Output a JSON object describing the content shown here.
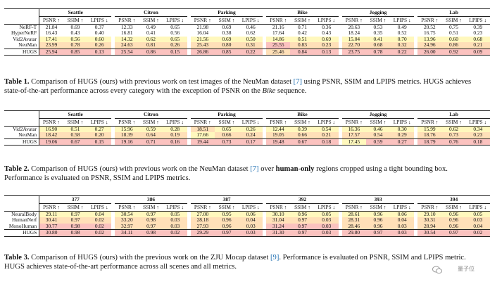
{
  "table1": {
    "groups": [
      "Seattle",
      "Citron",
      "Parking",
      "Bike",
      "Jogging",
      "Lab"
    ],
    "metrics": [
      "PSNR ↑",
      "SSIM ↑",
      "LPIPS ↓"
    ],
    "rows": [
      {
        "name": "NeRF-T",
        "cells": [
          [
            "21.84",
            ""
          ],
          [
            "0.69",
            ""
          ],
          [
            "0.37",
            ""
          ],
          [
            "12.33",
            ""
          ],
          [
            "0.49",
            ""
          ],
          [
            "0.65",
            ""
          ],
          [
            "21.98",
            ""
          ],
          [
            "0.69",
            ""
          ],
          [
            "0.46",
            ""
          ],
          [
            "21.16",
            ""
          ],
          [
            "0.71",
            ""
          ],
          [
            "0.36",
            ""
          ],
          [
            "20.63",
            ""
          ],
          [
            "0.53",
            ""
          ],
          [
            "0.49",
            ""
          ],
          [
            "20.52",
            ""
          ],
          [
            "0.75",
            ""
          ],
          [
            "0.39",
            ""
          ]
        ]
      },
      {
        "name": "HyperNeRF",
        "cells": [
          [
            "16.43",
            ""
          ],
          [
            "0.43",
            ""
          ],
          [
            "0.40",
            ""
          ],
          [
            "16.81",
            ""
          ],
          [
            "0.41",
            ""
          ],
          [
            "0.56",
            ""
          ],
          [
            "16.04",
            ""
          ],
          [
            "0.38",
            ""
          ],
          [
            "0.62",
            ""
          ],
          [
            "17.64",
            ""
          ],
          [
            "0.42",
            ""
          ],
          [
            "0.43",
            ""
          ],
          [
            "18.24",
            ""
          ],
          [
            "0.35",
            ""
          ],
          [
            "0.52",
            ""
          ],
          [
            "16.75",
            ""
          ],
          [
            "0.51",
            ""
          ],
          [
            "0.23",
            ""
          ]
        ]
      },
      {
        "name": "Vid2Avatar",
        "cells": [
          [
            "17.41",
            "y"
          ],
          [
            "0.56",
            "y"
          ],
          [
            "0.60",
            "y"
          ],
          [
            "14.32",
            "y"
          ],
          [
            "0.62",
            "y"
          ],
          [
            "0.65",
            "y"
          ],
          [
            "21.56",
            "y"
          ],
          [
            "0.69",
            "y"
          ],
          [
            "0.50",
            "y"
          ],
          [
            "14.86",
            "y"
          ],
          [
            "0.51",
            "y"
          ],
          [
            "0.69",
            "y"
          ],
          [
            "15.04",
            "y"
          ],
          [
            "0.41",
            "y"
          ],
          [
            "0.70",
            "y"
          ],
          [
            "13.96",
            "y"
          ],
          [
            "0.60",
            "y"
          ],
          [
            "0.68",
            "y"
          ]
        ]
      },
      {
        "name": "NeuMan",
        "cells": [
          [
            "23.99",
            "o"
          ],
          [
            "0.78",
            "o"
          ],
          [
            "0.26",
            "o"
          ],
          [
            "24.63",
            "o"
          ],
          [
            "0.81",
            "o"
          ],
          [
            "0.26",
            "o"
          ],
          [
            "25.43",
            "o"
          ],
          [
            "0.80",
            "o"
          ],
          [
            "0.31",
            "o"
          ],
          [
            "25.55",
            "b"
          ],
          [
            "0.83",
            "o"
          ],
          [
            "0.23",
            "o"
          ],
          [
            "22.70",
            "o"
          ],
          [
            "0.68",
            "o"
          ],
          [
            "0.32",
            "o"
          ],
          [
            "24.96",
            "o"
          ],
          [
            "0.86",
            "o"
          ],
          [
            "0.21",
            "o"
          ]
        ]
      }
    ],
    "hugs": {
      "name": "HUGS",
      "cells": [
        [
          "25.94",
          "b"
        ],
        [
          "0.85",
          "b"
        ],
        [
          "0.13",
          "b"
        ],
        [
          "25.54",
          "b"
        ],
        [
          "0.86",
          "b"
        ],
        [
          "0.15",
          "b"
        ],
        [
          "26.86",
          "b"
        ],
        [
          "0.85",
          "b"
        ],
        [
          "0.22",
          "b"
        ],
        [
          "25.46",
          "o"
        ],
        [
          "0.84",
          "b"
        ],
        [
          "0.13",
          "b"
        ],
        [
          "23.75",
          "b"
        ],
        [
          "0.78",
          "b"
        ],
        [
          "0.22",
          "b"
        ],
        [
          "26.00",
          "b"
        ],
        [
          "0.92",
          "b"
        ],
        [
          "0.09",
          "b"
        ]
      ]
    },
    "caption": {
      "label": "Table 1.",
      "p1": " Comparison of HUGS (ours) with previous work on test images of the NeuMan dataset ",
      "ref": "[7]",
      "p2": " using PSNR, SSIM and LPIPS metrics. HUGS achieves state-of-the-art performance across every category with the exception of PSNR on the ",
      "em": "Bike",
      "p3": " sequence."
    }
  },
  "table2": {
    "groups": [
      "Seattle",
      "Citron",
      "Parking",
      "Bike",
      "Jogging",
      "Lab"
    ],
    "metrics": [
      "PSNR ↑",
      "SSIM ↑",
      "LPIPS ↓"
    ],
    "rows": [
      {
        "name": "Vid2Avatar",
        "cells": [
          [
            "16.90",
            "y"
          ],
          [
            "0.51",
            "y"
          ],
          [
            "0.27",
            "y"
          ],
          [
            "15.96",
            "y"
          ],
          [
            "0.59",
            "y"
          ],
          [
            "0.28",
            "y"
          ],
          [
            "18.51",
            "o"
          ],
          [
            "0.65",
            "y"
          ],
          [
            "0.26",
            "y"
          ],
          [
            "12.44",
            "y"
          ],
          [
            "0.39",
            "y"
          ],
          [
            "0.54",
            "y"
          ],
          [
            "16.36",
            "y"
          ],
          [
            "0.46",
            "y"
          ],
          [
            "0.30",
            "y"
          ],
          [
            "15.99",
            "y"
          ],
          [
            "0.62",
            "y"
          ],
          [
            "0.34",
            "y"
          ]
        ]
      },
      {
        "name": "NeuMan",
        "cells": [
          [
            "18.42",
            "o"
          ],
          [
            "0.58",
            "o"
          ],
          [
            "0.20",
            "o"
          ],
          [
            "18.39",
            "o"
          ],
          [
            "0.64",
            "o"
          ],
          [
            "0.19",
            "o"
          ],
          [
            "17.66",
            "y"
          ],
          [
            "0.66",
            "o"
          ],
          [
            "0.24",
            "o"
          ],
          [
            "19.05",
            "o"
          ],
          [
            "0.66",
            "o"
          ],
          [
            "0.21",
            "o"
          ],
          [
            "17.57",
            "o"
          ],
          [
            "0.54",
            "o"
          ],
          [
            "0.29",
            "o"
          ],
          [
            "18.76",
            "o"
          ],
          [
            "0.73",
            "o"
          ],
          [
            "0.23",
            "o"
          ]
        ]
      }
    ],
    "hugs": {
      "name": "HUGS",
      "cells": [
        [
          "19.06",
          "b"
        ],
        [
          "0.67",
          "b"
        ],
        [
          "0.15",
          "b"
        ],
        [
          "19.16",
          "b"
        ],
        [
          "0.71",
          "b"
        ],
        [
          "0.16",
          "b"
        ],
        [
          "19.44",
          "b"
        ],
        [
          "0.73",
          "b"
        ],
        [
          "0.17",
          "b"
        ],
        [
          "19.48",
          "b"
        ],
        [
          "0.67",
          "b"
        ],
        [
          "0.18",
          "b"
        ],
        [
          "17.45",
          "y"
        ],
        [
          "0.59",
          "b"
        ],
        [
          "0.27",
          "b"
        ],
        [
          "18.79",
          "b"
        ],
        [
          "0.76",
          "b"
        ],
        [
          "0.18",
          "b"
        ]
      ]
    },
    "caption": {
      "label": "Table 2.",
      "p1": " Comparison of HUGS (ours) with previous work on the NeuMan dataset ",
      "ref": "[7]",
      "p2": " over ",
      "bold": "human-only",
      "p3": " regions cropped using a tight bounding box. Performance is evaluated on PSNR, SSIM and LPIPS metrics."
    }
  },
  "table3": {
    "groups": [
      "377",
      "386",
      "387",
      "392",
      "393",
      "394"
    ],
    "metrics": [
      "PSNR ↑",
      "SSIM ↑",
      "LPIPS ↓"
    ],
    "rows": [
      {
        "name": "NeuralBody",
        "cells": [
          [
            "29.11",
            "y"
          ],
          [
            "0.97",
            "y"
          ],
          [
            "0.04",
            "y"
          ],
          [
            "30.54",
            "y"
          ],
          [
            "0.97",
            "y"
          ],
          [
            "0.05",
            "y"
          ],
          [
            "27.00",
            "y"
          ],
          [
            "0.95",
            "y"
          ],
          [
            "0.06",
            "y"
          ],
          [
            "30.10",
            "y"
          ],
          [
            "0.96",
            "y"
          ],
          [
            "0.05",
            "y"
          ],
          [
            "28.61",
            "y"
          ],
          [
            "0.96",
            "y"
          ],
          [
            "0.06",
            "y"
          ],
          [
            "29.10",
            "y"
          ],
          [
            "0.96",
            "y"
          ],
          [
            "0.05",
            "y"
          ]
        ]
      },
      {
        "name": "HumanNerf",
        "cells": [
          [
            "30.41",
            "o"
          ],
          [
            "0.97",
            "o"
          ],
          [
            "0.02",
            "o"
          ],
          [
            "33.20",
            "o"
          ],
          [
            "0.98",
            "o"
          ],
          [
            "0.03",
            "o"
          ],
          [
            "28.18",
            "o"
          ],
          [
            "0.96",
            "o"
          ],
          [
            "0.04",
            "o"
          ],
          [
            "31.04",
            "o"
          ],
          [
            "0.97",
            "o"
          ],
          [
            "0.03",
            "o"
          ],
          [
            "28.31",
            "o"
          ],
          [
            "0.96",
            "o"
          ],
          [
            "0.04",
            "o"
          ],
          [
            "30.31",
            "o"
          ],
          [
            "0.96",
            "o"
          ],
          [
            "0.03",
            "o"
          ]
        ]
      },
      {
        "name": "MonoHuman",
        "cells": [
          [
            "30.77",
            "b"
          ],
          [
            "0.98",
            "b"
          ],
          [
            "0.02",
            "b"
          ],
          [
            "32.97",
            "o"
          ],
          [
            "0.97",
            "o"
          ],
          [
            "0.03",
            "o"
          ],
          [
            "27.93",
            "o"
          ],
          [
            "0.96",
            "o"
          ],
          [
            "0.03",
            "o"
          ],
          [
            "31.24",
            "b"
          ],
          [
            "0.97",
            "b"
          ],
          [
            "0.03",
            "b"
          ],
          [
            "28.46",
            "o"
          ],
          [
            "0.96",
            "o"
          ],
          [
            "0.03",
            "o"
          ],
          [
            "28.94",
            "o"
          ],
          [
            "0.96",
            "o"
          ],
          [
            "0.04",
            "o"
          ]
        ]
      }
    ],
    "hugs": {
      "name": "HUGS",
      "cells": [
        [
          "30.80",
          "b"
        ],
        [
          "0.98",
          "b"
        ],
        [
          "0.02",
          "b"
        ],
        [
          "34.11",
          "b"
        ],
        [
          "0.98",
          "b"
        ],
        [
          "0.02",
          "b"
        ],
        [
          "29.29",
          "b"
        ],
        [
          "0.97",
          "b"
        ],
        [
          "0.03",
          "b"
        ],
        [
          "31.30",
          "b"
        ],
        [
          "0.97",
          "b"
        ],
        [
          "0.03",
          "b"
        ],
        [
          "29.80",
          "b"
        ],
        [
          "0.97",
          "b"
        ],
        [
          "0.03",
          "b"
        ],
        [
          "30.54",
          "b"
        ],
        [
          "0.97",
          "b"
        ],
        [
          "0.02",
          "b"
        ]
      ]
    },
    "caption": {
      "label": "Table 3.",
      "p1": " Comparison of HUGS (ours) with the previous work on the ZJU Mocap dataset ",
      "ref": "[9]",
      "p2": ". Performance is evaluated on PSNR, SSIM and LPIPS metric. HUGS achieves state-of-the-art performance across all scenes and all metrics."
    }
  },
  "watermark": "量子位",
  "colors": {
    "best": "#fbc2bf",
    "second": "#ffe0b8",
    "third": "#fff8bd"
  }
}
